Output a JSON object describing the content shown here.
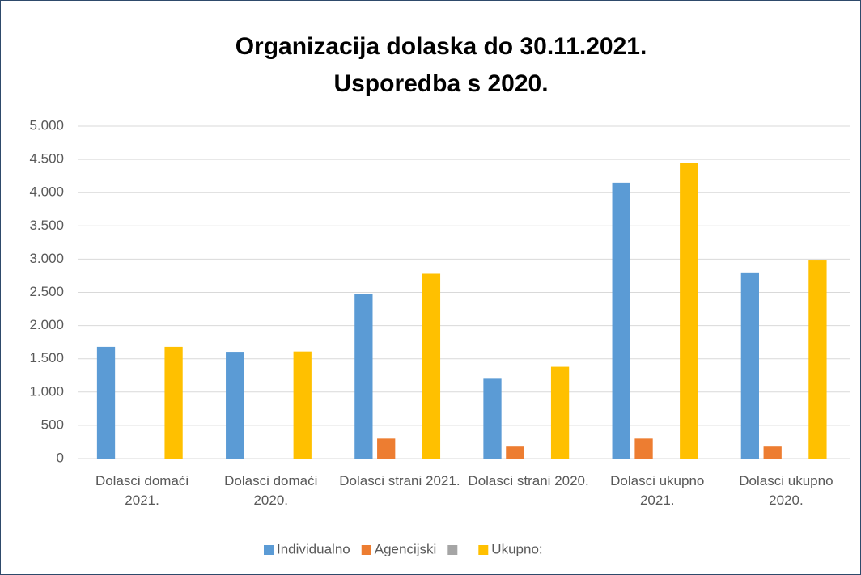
{
  "chart_data": {
    "type": "bar",
    "title": "Organizacija dolaska do 30.11.2021.",
    "subtitle": "Usporedba s 2020.",
    "categories": [
      "Dolasci domaći 2021.",
      "Dolasci domaći 2020.",
      "Dolasci strani 2021.",
      "Dolasci strani 2020.",
      "Dolasci ukupno 2021.",
      "Dolasci ukupno 2020."
    ],
    "series": [
      {
        "name": "Individualno",
        "color": "#5b9bd5",
        "values": [
          1680,
          1605,
          2480,
          1200,
          4150,
          2800
        ]
      },
      {
        "name": "Agencijski",
        "color": "#ed7d31",
        "values": [
          0,
          0,
          300,
          180,
          300,
          180
        ]
      },
      {
        "name": null,
        "color": "#a5a5a5",
        "values": [
          null,
          null,
          null,
          null,
          null,
          null
        ]
      },
      {
        "name": "Ukupno:",
        "color": "#ffc000",
        "values": [
          1680,
          1610,
          2780,
          1380,
          4450,
          2980
        ]
      }
    ],
    "ylim": [
      0,
      5000
    ],
    "yticks": [
      0,
      {
        "value": 500,
        "label": "500"
      },
      {
        "value": 1000,
        "label": "1.000"
      },
      {
        "value": 1500,
        "label": "1.500"
      },
      {
        "value": 2000,
        "label": "2.000"
      },
      {
        "value": 2500,
        "label": "2.500"
      },
      {
        "value": 3000,
        "label": "3.000"
      },
      {
        "value": 3500,
        "label": "3.500"
      },
      {
        "value": 4000,
        "label": "4.000"
      },
      {
        "value": 4500,
        "label": "4.500"
      },
      {
        "value": 5000,
        "label": "5.000"
      }
    ],
    "grid": true,
    "legend": "bottom"
  }
}
